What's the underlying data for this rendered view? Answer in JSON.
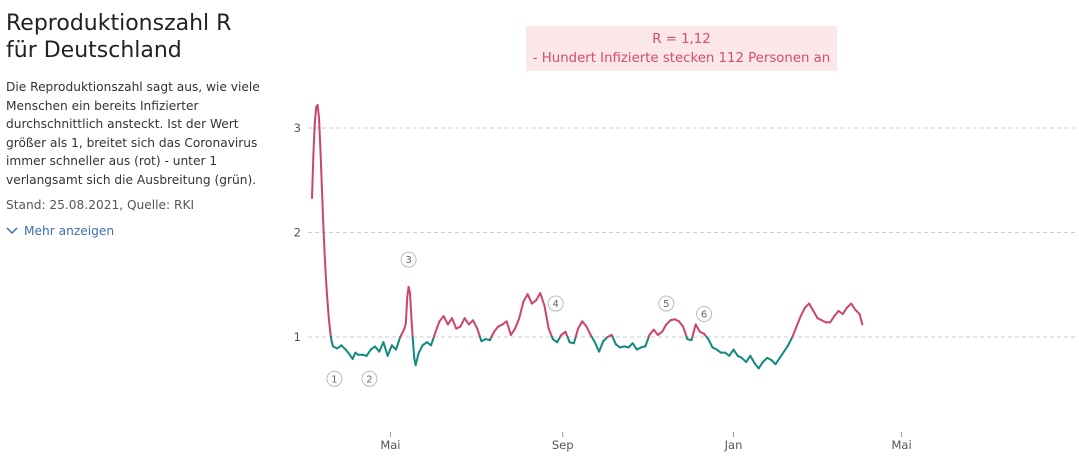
{
  "header": {
    "title_line1": "Reproduktionszahl R",
    "title_line2": "für Deutschland"
  },
  "description": "Die Reproduktionszahl sagt aus, wie viele Menschen ein bereits Infizierter durchschnittlich ansteckt. Ist der Wert größer als 1, breitet sich das Coronavirus immer schneller aus (rot) - unter 1 verlangsamt sich die Ausbreitung (grün).",
  "meta": "Stand: 25.08.2021, Quelle: RKI",
  "more_label": "Mehr anzeigen",
  "infobox": {
    "line1": "R = 1,12",
    "line2": "- Hundert Infizierte stecken 112 Personen an"
  },
  "colors": {
    "above": "#cc4566",
    "below": "#11897d",
    "grid": "#cccccc",
    "infobox_bg": "#fbe6e8",
    "infobox_text": "#d2506a",
    "link": "#3d6fb3"
  },
  "chart_data": {
    "type": "line",
    "title": "Reproduktionszahl R für Deutschland",
    "xlabel": "",
    "ylabel": "",
    "x_start": "2020-03-06",
    "x_end": "2021-08-25",
    "ylim": [
      0.0,
      3.3
    ],
    "yticks": [
      1,
      2,
      3
    ],
    "xticks": [
      {
        "label": "Mai",
        "date": "2020-05-01"
      },
      {
        "label": "Sep",
        "date": "2020-09-01"
      },
      {
        "label": "Jan",
        "date": "2021-01-01"
      },
      {
        "label": "Mai",
        "date": "2021-05-01"
      }
    ],
    "threshold": 1,
    "grid": true,
    "series": [
      {
        "values": [
          [
            "2020-03-06",
            2.33
          ],
          [
            "2020-03-07",
            2.75
          ],
          [
            "2020-03-08",
            3.05
          ],
          [
            "2020-03-09",
            3.2
          ],
          [
            "2020-03-10",
            3.22
          ],
          [
            "2020-03-11",
            3.1
          ],
          [
            "2020-03-12",
            2.8
          ],
          [
            "2020-03-13",
            2.45
          ],
          [
            "2020-03-14",
            2.1
          ],
          [
            "2020-03-15",
            1.8
          ],
          [
            "2020-03-16",
            1.55
          ],
          [
            "2020-03-17",
            1.35
          ],
          [
            "2020-03-18",
            1.18
          ],
          [
            "2020-03-19",
            1.05
          ],
          [
            "2020-03-20",
            0.96
          ],
          [
            "2020-03-21",
            0.91
          ],
          [
            "2020-03-24",
            0.89
          ],
          [
            "2020-03-27",
            0.92
          ],
          [
            "2020-03-30",
            0.88
          ],
          [
            "2020-04-02",
            0.83
          ],
          [
            "2020-04-04",
            0.79
          ],
          [
            "2020-04-06",
            0.85
          ],
          [
            "2020-04-08",
            0.83
          ],
          [
            "2020-04-11",
            0.83
          ],
          [
            "2020-04-14",
            0.82
          ],
          [
            "2020-04-17",
            0.88
          ],
          [
            "2020-04-20",
            0.91
          ],
          [
            "2020-04-23",
            0.86
          ],
          [
            "2020-04-26",
            0.95
          ],
          [
            "2020-04-29",
            0.82
          ],
          [
            "2020-05-02",
            0.92
          ],
          [
            "2020-05-05",
            0.88
          ],
          [
            "2020-05-08",
            1.0
          ],
          [
            "2020-05-11",
            1.08
          ],
          [
            "2020-05-12",
            1.13
          ],
          [
            "2020-05-13",
            1.38
          ],
          [
            "2020-05-14",
            1.48
          ],
          [
            "2020-05-15",
            1.42
          ],
          [
            "2020-05-16",
            1.18
          ],
          [
            "2020-05-17",
            0.98
          ],
          [
            "2020-05-18",
            0.8
          ],
          [
            "2020-05-19",
            0.73
          ],
          [
            "2020-05-21",
            0.84
          ],
          [
            "2020-05-24",
            0.92
          ],
          [
            "2020-05-27",
            0.95
          ],
          [
            "2020-05-30",
            0.92
          ],
          [
            "2020-06-02",
            1.04
          ],
          [
            "2020-06-05",
            1.15
          ],
          [
            "2020-06-08",
            1.2
          ],
          [
            "2020-06-11",
            1.12
          ],
          [
            "2020-06-14",
            1.18
          ],
          [
            "2020-06-17",
            1.08
          ],
          [
            "2020-06-20",
            1.1
          ],
          [
            "2020-06-23",
            1.18
          ],
          [
            "2020-06-26",
            1.12
          ],
          [
            "2020-06-29",
            1.16
          ],
          [
            "2020-07-02",
            1.08
          ],
          [
            "2020-07-05",
            0.96
          ],
          [
            "2020-07-08",
            0.98
          ],
          [
            "2020-07-11",
            0.97
          ],
          [
            "2020-07-14",
            1.05
          ],
          [
            "2020-07-17",
            1.1
          ],
          [
            "2020-07-20",
            1.12
          ],
          [
            "2020-07-23",
            1.15
          ],
          [
            "2020-07-26",
            1.02
          ],
          [
            "2020-07-29",
            1.08
          ],
          [
            "2020-08-01",
            1.18
          ],
          [
            "2020-08-04",
            1.34
          ],
          [
            "2020-08-07",
            1.41
          ],
          [
            "2020-08-10",
            1.32
          ],
          [
            "2020-08-13",
            1.35
          ],
          [
            "2020-08-16",
            1.42
          ],
          [
            "2020-08-19",
            1.3
          ],
          [
            "2020-08-22",
            1.08
          ],
          [
            "2020-08-25",
            0.98
          ],
          [
            "2020-08-28",
            0.95
          ],
          [
            "2020-08-31",
            1.02
          ],
          [
            "2020-09-03",
            1.05
          ],
          [
            "2020-09-06",
            0.95
          ],
          [
            "2020-09-09",
            0.94
          ],
          [
            "2020-09-12",
            1.08
          ],
          [
            "2020-09-15",
            1.15
          ],
          [
            "2020-09-18",
            1.1
          ],
          [
            "2020-09-21",
            1.02
          ],
          [
            "2020-09-24",
            0.95
          ],
          [
            "2020-09-27",
            0.86
          ],
          [
            "2020-09-30",
            0.96
          ],
          [
            "2020-10-03",
            1.0
          ],
          [
            "2020-10-06",
            1.02
          ],
          [
            "2020-10-09",
            0.93
          ],
          [
            "2020-10-12",
            0.9
          ],
          [
            "2020-10-15",
            0.91
          ],
          [
            "2020-10-18",
            0.9
          ],
          [
            "2020-10-21",
            0.94
          ],
          [
            "2020-10-24",
            0.88
          ],
          [
            "2020-10-27",
            0.9
          ],
          [
            "2020-10-30",
            0.91
          ],
          [
            "2020-11-02",
            1.02
          ],
          [
            "2020-11-05",
            1.07
          ],
          [
            "2020-11-08",
            1.02
          ],
          [
            "2020-11-11",
            1.05
          ],
          [
            "2020-11-14",
            1.12
          ],
          [
            "2020-11-17",
            1.16
          ],
          [
            "2020-11-20",
            1.17
          ],
          [
            "2020-11-23",
            1.15
          ],
          [
            "2020-11-26",
            1.1
          ],
          [
            "2020-11-29",
            0.98
          ],
          [
            "2020-12-02",
            0.97
          ],
          [
            "2020-12-05",
            1.12
          ],
          [
            "2020-12-08",
            1.05
          ],
          [
            "2020-12-11",
            1.03
          ],
          [
            "2020-12-14",
            0.98
          ],
          [
            "2020-12-17",
            0.9
          ],
          [
            "2020-12-20",
            0.88
          ],
          [
            "2020-12-23",
            0.85
          ],
          [
            "2020-12-26",
            0.85
          ],
          [
            "2020-12-29",
            0.82
          ],
          [
            "2021-01-01",
            0.88
          ],
          [
            "2021-01-04",
            0.82
          ],
          [
            "2021-01-07",
            0.8
          ],
          [
            "2021-01-10",
            0.76
          ],
          [
            "2021-01-13",
            0.82
          ],
          [
            "2021-01-16",
            0.75
          ],
          [
            "2021-01-19",
            0.7
          ],
          [
            "2021-01-22",
            0.76
          ],
          [
            "2021-01-25",
            0.8
          ],
          [
            "2021-01-28",
            0.78
          ],
          [
            "2021-01-31",
            0.74
          ],
          [
            "2021-02-03",
            0.8
          ],
          [
            "2021-02-06",
            0.86
          ],
          [
            "2021-02-09",
            0.92
          ],
          [
            "2021-02-12",
            1.0
          ],
          [
            "2021-02-15",
            1.1
          ],
          [
            "2021-02-18",
            1.2
          ],
          [
            "2021-02-21",
            1.28
          ],
          [
            "2021-02-24",
            1.32
          ],
          [
            "2021-02-27",
            1.25
          ],
          [
            "2021-03-02",
            1.18
          ],
          [
            "2021-03-05",
            1.16
          ],
          [
            "2021-03-08",
            1.14
          ],
          [
            "2021-03-11",
            1.14
          ],
          [
            "2021-03-14",
            1.2
          ],
          [
            "2021-03-17",
            1.25
          ],
          [
            "2021-03-20",
            1.22
          ],
          [
            "2021-03-23",
            1.28
          ],
          [
            "2021-03-26",
            1.32
          ],
          [
            "2021-03-29",
            1.26
          ],
          [
            "2021-04-01",
            1.22
          ],
          [
            "2021-04-03",
            1.12
          ]
        ]
      }
    ],
    "annotations": [
      {
        "label": "1",
        "date": "2020-03-22",
        "y": 0.6
      },
      {
        "label": "2",
        "date": "2020-04-16",
        "y": 0.6
      },
      {
        "label": "3",
        "date": "2020-05-14",
        "y": 1.74
      },
      {
        "label": "4",
        "date": "2020-08-27",
        "y": 1.32
      },
      {
        "label": "5",
        "date": "2020-11-14",
        "y": 1.32
      },
      {
        "label": "6",
        "date": "2020-12-11",
        "y": 1.22
      }
    ]
  }
}
